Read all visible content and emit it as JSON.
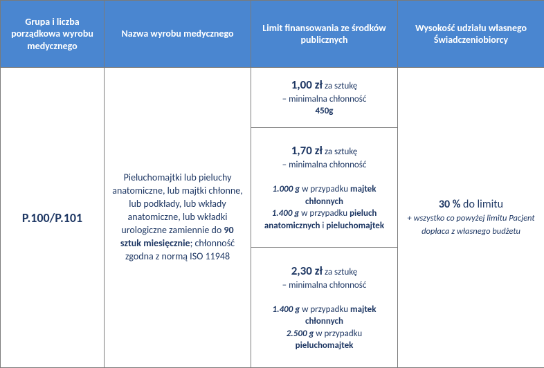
{
  "colors": {
    "header_bg": "#4a86d0",
    "header_fg": "#ffffff",
    "border": "#7a7a7a",
    "body_fg": "#1f3864"
  },
  "headers": {
    "col1": "Grupa i liczba porządkowa wyrobu medycznego",
    "col2": "Nazwa wyrobu medycznego",
    "col3": "Limit finansowania ze środków publicznych",
    "col4": "Wysokość udziału własnego Świadczeniobiorcy"
  },
  "row": {
    "code": "P.100/P.101",
    "desc_pre": "Pieluchomajtki lub pieluchy anatomiczne, lub majtki chłonne, lub podkłady, lub wkłady anatomiczne, lub wkładki urologiczne zamiennie do ",
    "desc_bold": "90 sztuk miesięcznie",
    "desc_post": "; chłonność zgodna z normą ISO 11948",
    "limits": [
      {
        "price": "1,00 zł",
        "per": " za sztukę",
        "min_label": "– minimalna chłonność",
        "min_value": "450g"
      },
      {
        "price": "1,70 zł",
        "per": " za sztukę",
        "min_label": "– minimalna chłonność",
        "lines": [
          {
            "val": "1.000 g",
            "txt": " w przypadku ",
            "bold": "majtek chłonnych"
          },
          {
            "val": "1.400 g",
            "txt": " w przypadku ",
            "bold": "pieluch anatomicznych",
            "and": " i ",
            "bold2": "pieluchomajtek"
          }
        ]
      },
      {
        "price": "2,30 zł",
        "per": " za sztukę",
        "min_label": "– minimalna chłonność",
        "lines": [
          {
            "val": "1.400 g",
            "txt": " w przypadku ",
            "bold": "majtek chłonnych"
          },
          {
            "val": "2.500 g",
            "txt": " w przypadku ",
            "bold": "pieluchomajtek"
          }
        ]
      }
    ],
    "share": {
      "percent": "30 %",
      "percent_post": " do limitu",
      "note": "+ wszystko co powyżej limitu Pacjent dopłaca z własnego budżetu"
    }
  }
}
